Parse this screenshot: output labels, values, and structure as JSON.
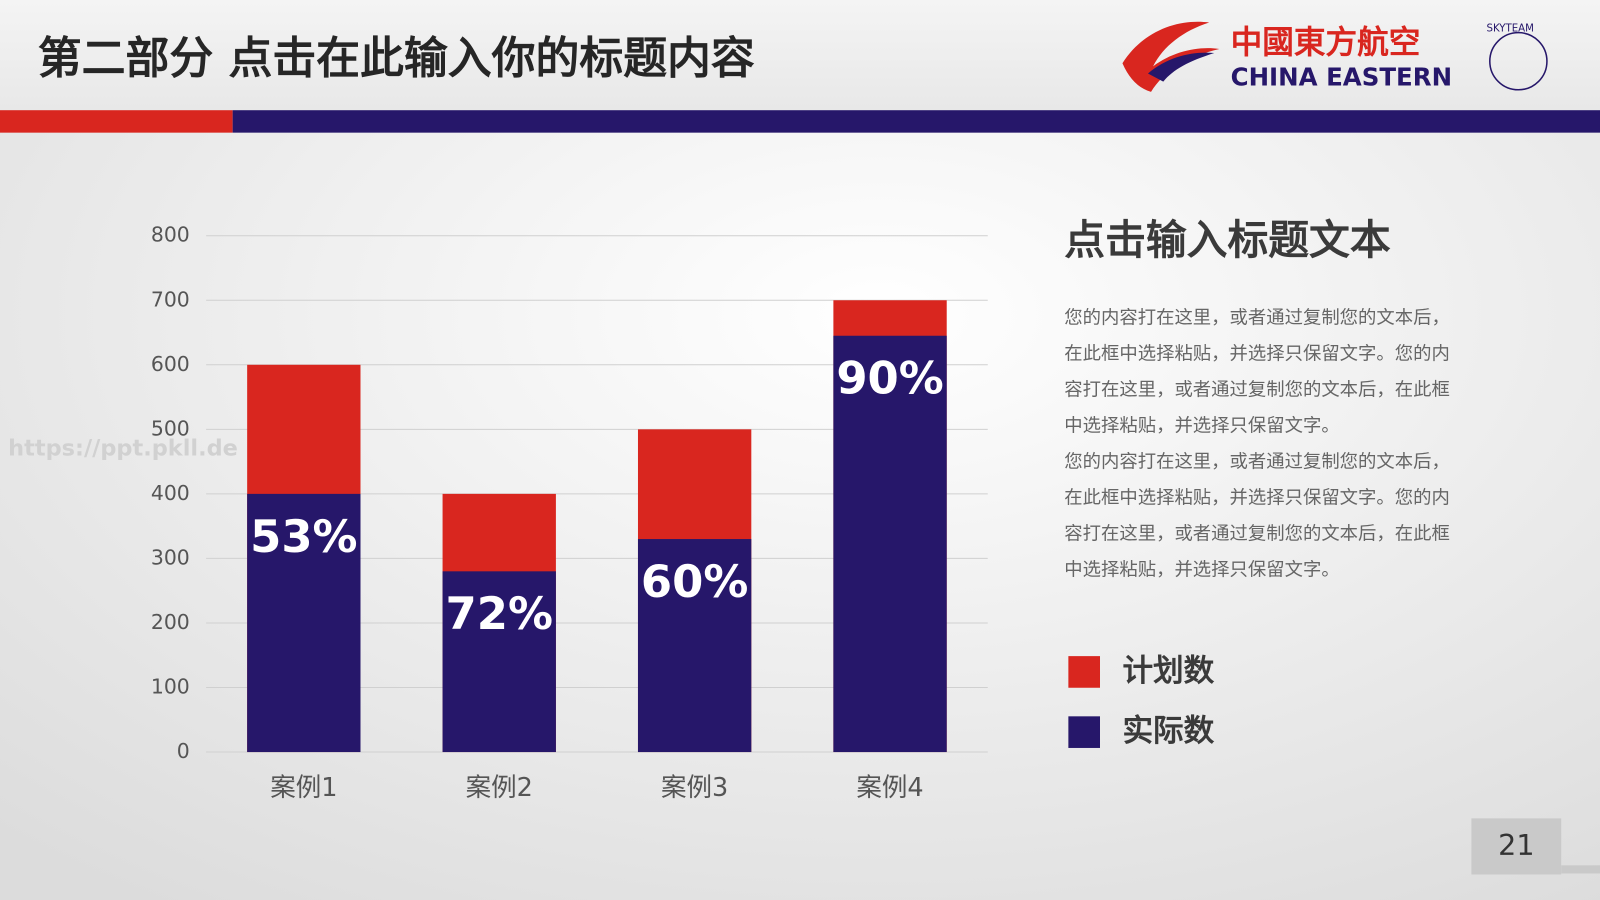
{
  "header": {
    "title": "第二部分   点击在此输入你的标题内容",
    "logo_cn": "中國東方航空",
    "logo_en": "CHINA EASTERN",
    "logo_alliance": "SKYTEAM"
  },
  "watermark": "https://ppt.pkll.de",
  "chart_data": {
    "type": "bar",
    "mode": "overlap",
    "categories": [
      "案例1",
      "案例2",
      "案例3",
      "案例4"
    ],
    "series": [
      {
        "name": "计划数",
        "color": "#d9261f",
        "values": [
          600,
          400,
          500,
          700
        ]
      },
      {
        "name": "实际数",
        "color": "#26176a",
        "values": [
          400,
          280,
          330,
          645
        ]
      }
    ],
    "bar_labels": [
      "53%",
      "72%",
      "60%",
      "90%"
    ],
    "ylim": [
      0,
      800
    ],
    "yticks": [
      0,
      100,
      200,
      300,
      400,
      500,
      600,
      700,
      800
    ],
    "grid": true,
    "legend": "right"
  },
  "side": {
    "title": "点击输入标题文本",
    "lines": [
      "您的内容打在这里，或者通过复制您的文本后，",
      "在此框中选择粘贴，并选择只保留文字。您的内",
      "容打在这里，或者通过复制您的文本后，在此框",
      "中选择粘贴，并选择只保留文字。",
      "您的内容打在这里，或者通过复制您的文本后，",
      "在此框中选择粘贴，并选择只保留文字。您的内",
      "容打在这里，或者通过复制您的文本后，在此框",
      "中选择粘贴，并选择只保留文字。"
    ]
  },
  "page_number": "21"
}
